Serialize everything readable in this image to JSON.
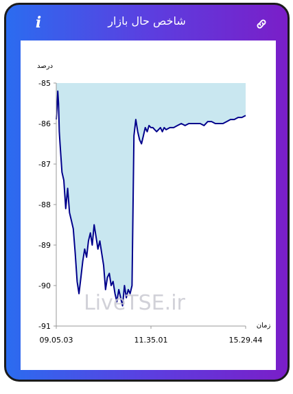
{
  "header": {
    "title": "شاخص حال بازار",
    "info_icon": "info-icon",
    "info_label": "i",
    "link_icon": "link-icon"
  },
  "colors": {
    "gradient_start": "#2b6cf0",
    "gradient_end": "#7a1ec8",
    "line": "#00008b",
    "fill": "#c9e7f0"
  },
  "watermark": "LiveTSE.ir",
  "chart_data": {
    "type": "area",
    "ylabel": "درصد",
    "xlabel": "زمان",
    "ylim": [
      -91,
      -85
    ],
    "yticks": [
      "-85",
      "-86",
      "-87",
      "-88",
      "-89",
      "-90",
      "-91"
    ],
    "xtick_labels": [
      "09.05.03",
      "11.35.01",
      "15.29.44"
    ],
    "x_range_fraction": [
      0,
      1
    ],
    "series": [
      {
        "x": [
          0,
          0.004,
          0.008,
          0.012,
          0.016,
          0.02,
          0.03,
          0.04,
          0.05,
          0.06,
          0.07,
          0.08,
          0.09,
          0.1,
          0.11,
          0.12,
          0.13,
          0.14,
          0.15,
          0.16,
          0.17,
          0.18,
          0.19,
          0.2,
          0.21,
          0.22,
          0.23,
          0.24,
          0.25,
          0.26,
          0.27,
          0.28,
          0.29,
          0.3,
          0.31,
          0.32,
          0.33,
          0.34,
          0.35,
          0.36,
          0.37,
          0.38,
          0.39,
          0.4,
          0.41,
          0.42,
          0.43,
          0.44,
          0.45,
          0.46,
          0.47,
          0.48,
          0.49,
          0.5,
          0.51,
          0.52,
          0.53,
          0.54,
          0.55,
          0.56,
          0.565,
          0.57,
          0.58,
          0.6,
          0.62,
          0.64,
          0.66,
          0.68,
          0.7,
          0.72,
          0.74,
          0.76,
          0.78,
          0.8,
          0.82,
          0.84,
          0.86,
          0.88,
          0.9,
          0.92,
          0.94,
          0.96,
          0.98,
          1
        ],
        "y": [
          -85.9,
          -85.6,
          -85.2,
          -85.5,
          -86.2,
          -86.5,
          -87.2,
          -87.4,
          -88.1,
          -87.6,
          -88.2,
          -88.4,
          -88.6,
          -89.2,
          -89.9,
          -90.2,
          -89.8,
          -89.4,
          -89.1,
          -89.3,
          -88.9,
          -88.7,
          -89.0,
          -88.5,
          -88.8,
          -89.1,
          -88.9,
          -89.2,
          -89.5,
          -90.1,
          -89.8,
          -89.7,
          -90.0,
          -89.9,
          -90.2,
          -90.4,
          -90.1,
          -90.3,
          -90.5,
          -90.0,
          -90.3,
          -90.1,
          -90.2,
          -90.0,
          -86.3,
          -85.9,
          -86.2,
          -86.4,
          -86.5,
          -86.3,
          -86.1,
          -86.2,
          -86.05,
          -86.1,
          -86.1,
          -86.15,
          -86.2,
          -86.15,
          -86.1,
          -86.2,
          -86.15,
          -86.1,
          -86.15,
          -86.1,
          -86.1,
          -86.05,
          -86.0,
          -86.05,
          -86.0,
          -86.0,
          -86.0,
          -86.0,
          -86.05,
          -85.95,
          -85.95,
          -86.0,
          -86.0,
          -86.0,
          -85.95,
          -85.9,
          -85.9,
          -85.85,
          -85.85,
          -85.8
        ]
      }
    ]
  }
}
